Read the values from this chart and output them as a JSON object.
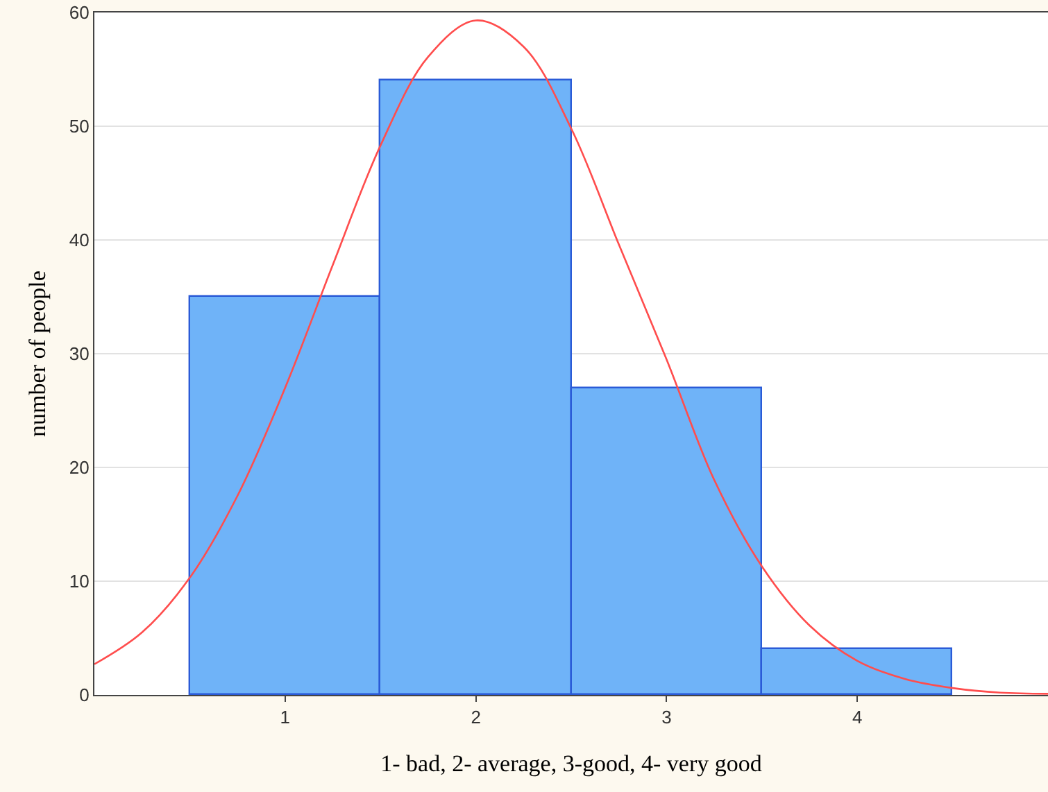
{
  "chart_data": {
    "type": "histogram",
    "xlabel": "1- bad, 2- average, 3-good, 4- very good",
    "ylabel": "number of people",
    "bins": [
      0.5,
      1.5,
      2.5,
      3.5,
      4.5
    ],
    "xlim": [
      0,
      5
    ],
    "xticks": [
      1,
      2,
      3,
      4
    ],
    "ylim": [
      0,
      60
    ],
    "yticks": [
      0,
      10,
      20,
      30,
      40,
      50,
      60
    ],
    "grid": "y",
    "series": [
      {
        "color": "#6fb3f8",
        "values": [
          35,
          54,
          27,
          4
        ]
      },
      {
        "type": "line",
        "color": "#ff4d4d",
        "x": [
          0,
          0.25,
          0.5,
          0.75,
          1,
          1.25,
          1.5,
          1.75,
          2,
          2.25,
          2.5,
          2.75,
          3,
          3.25,
          3.5,
          3.75,
          4,
          4.25,
          4.5,
          4.75,
          5
        ],
        "values": [
          2.7,
          5.5,
          10.3,
          17.5,
          27,
          37.8,
          48.3,
          56.1,
          59.3,
          57,
          49.8,
          39.6,
          29.5,
          18.9,
          11.3,
          6.1,
          3,
          1.4,
          0.6,
          0.2,
          0.1
        ]
      }
    ]
  }
}
